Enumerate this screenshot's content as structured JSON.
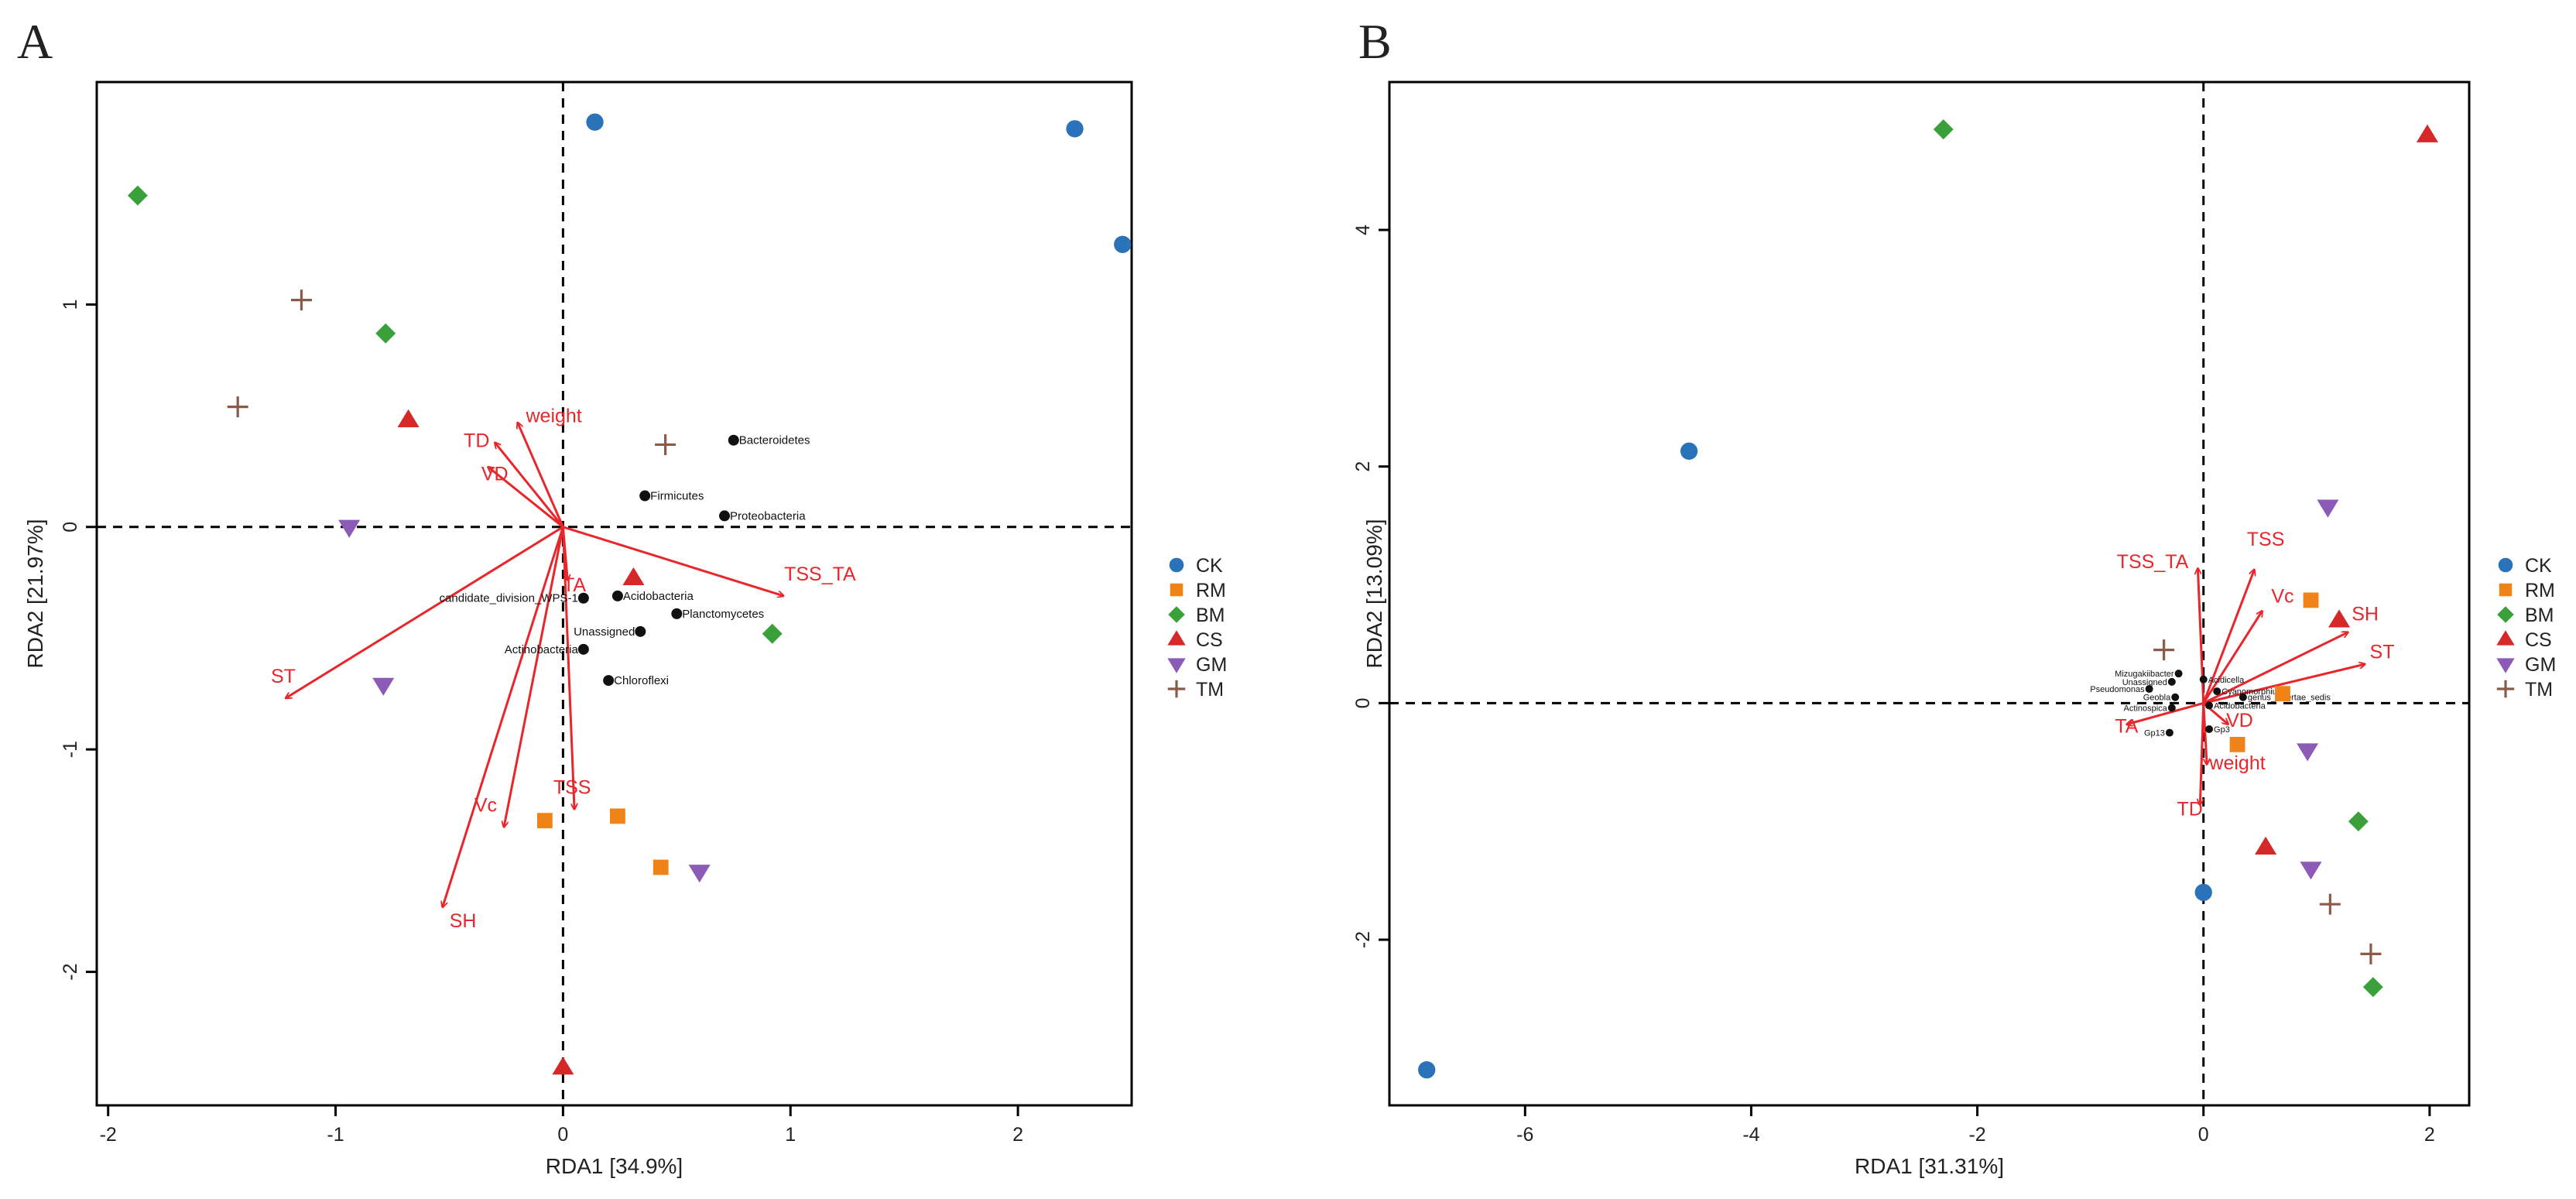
{
  "chart_data": [
    {
      "type": "scatter",
      "panel": "A",
      "title": "",
      "xlabel": "RDA1  [34.9%]",
      "ylabel": "RDA2  [21.97%]",
      "xlim": [
        -2.05,
        2.5
      ],
      "ylim": [
        -2.6,
        2.0
      ],
      "xticks": [
        -2,
        -1,
        0,
        1,
        2
      ],
      "yticks": [
        -2,
        -1,
        0,
        1
      ],
      "grid": false,
      "legend_position": "right",
      "series": [
        {
          "name": "CK",
          "color": "#2a73b8",
          "marker": "circle",
          "points": [
            [
              0.14,
              1.82
            ],
            [
              2.25,
              1.79
            ],
            [
              2.46,
              1.27
            ]
          ]
        },
        {
          "name": "RM",
          "color": "#f08318",
          "marker": "square",
          "points": [
            [
              -0.08,
              -1.32
            ],
            [
              0.24,
              -1.3
            ],
            [
              0.43,
              -1.53
            ]
          ]
        },
        {
          "name": "BM",
          "color": "#3aa03a",
          "marker": "diamond",
          "points": [
            [
              -1.87,
              1.49
            ],
            [
              -0.78,
              0.87
            ],
            [
              0.92,
              -0.48
            ]
          ]
        },
        {
          "name": "CS",
          "color": "#d62828",
          "marker": "triangle-up",
          "points": [
            [
              -0.68,
              0.48
            ],
            [
              0.31,
              -0.23
            ],
            [
              0.0,
              -2.43
            ]
          ]
        },
        {
          "name": "GM",
          "color": "#8c5bb8",
          "marker": "triangle-down",
          "points": [
            [
              -0.94,
              0.0
            ],
            [
              -0.79,
              -0.71
            ],
            [
              0.6,
              -1.55
            ]
          ]
        },
        {
          "name": "TM",
          "color": "#8c5a48",
          "marker": "plus",
          "points": [
            [
              -1.15,
              1.02
            ],
            [
              -1.43,
              0.54
            ],
            [
              0.45,
              0.37
            ]
          ]
        }
      ],
      "vectors": [
        {
          "label": "weight",
          "x": -0.2,
          "y": 0.47,
          "lx": -0.04,
          "ly": 0.47
        },
        {
          "label": "TD",
          "x": -0.3,
          "y": 0.38,
          "lx": -0.38,
          "ly": 0.36
        },
        {
          "label": "VD",
          "x": -0.33,
          "y": 0.27,
          "lx": -0.3,
          "ly": 0.21
        },
        {
          "label": "TSS_TA",
          "x": 0.97,
          "y": -0.31,
          "lx": 1.13,
          "ly": -0.24
        },
        {
          "label": "TA",
          "x": 0.02,
          "y": -0.24,
          "lx": 0.05,
          "ly": -0.29
        },
        {
          "label": "ST",
          "x": -1.22,
          "y": -0.77,
          "lx": -1.23,
          "ly": -0.7
        },
        {
          "label": "Vc",
          "x": -0.26,
          "y": -1.35,
          "lx": -0.34,
          "ly": -1.28
        },
        {
          "label": "TSS",
          "x": 0.05,
          "y": -1.27,
          "lx": 0.04,
          "ly": -1.2
        },
        {
          "label": "SH",
          "x": -0.53,
          "y": -1.71,
          "lx": -0.44,
          "ly": -1.8
        }
      ],
      "taxa": [
        {
          "label": "Bacteroidetes",
          "x": 0.75,
          "y": 0.39
        },
        {
          "label": "Firmicutes",
          "x": 0.36,
          "y": 0.14
        },
        {
          "label": "Proteobacteria",
          "x": 0.71,
          "y": 0.05
        },
        {
          "label": "Acidobacteria",
          "x": 0.24,
          "y": -0.31
        },
        {
          "label": "candidate_division_WPS-1",
          "x": 0.09,
          "y": -0.32
        },
        {
          "label": "Planctomycetes",
          "x": 0.5,
          "y": -0.39
        },
        {
          "label": "Unassigned",
          "x": 0.34,
          "y": -0.47
        },
        {
          "label": "Actinobacteria",
          "x": 0.09,
          "y": -0.55
        },
        {
          "label": "Chloroflexi",
          "x": 0.2,
          "y": -0.69
        }
      ]
    },
    {
      "type": "scatter",
      "panel": "B",
      "title": "",
      "xlabel": "RDA1  [31.31%]",
      "ylabel": "RDA2  [13.09%]",
      "xlim": [
        -7.2,
        2.35
      ],
      "ylim": [
        -3.4,
        5.25
      ],
      "xticks": [
        -6,
        -4,
        -2,
        0,
        2
      ],
      "yticks": [
        -2,
        0,
        2,
        4
      ],
      "grid": false,
      "legend_position": "right",
      "series": [
        {
          "name": "CK",
          "color": "#2a73b8",
          "marker": "circle",
          "points": [
            [
              -4.55,
              2.13
            ],
            [
              -6.87,
              -3.1
            ],
            [
              0.0,
              -1.6
            ]
          ]
        },
        {
          "name": "RM",
          "color": "#f08318",
          "marker": "square",
          "points": [
            [
              0.95,
              0.87
            ],
            [
              0.3,
              -0.35
            ],
            [
              0.7,
              0.08
            ]
          ]
        },
        {
          "name": "BM",
          "color": "#3aa03a",
          "marker": "diamond",
          "points": [
            [
              -2.3,
              4.85
            ],
            [
              1.37,
              -1.0
            ],
            [
              1.5,
              -2.4
            ]
          ]
        },
        {
          "name": "CS",
          "color": "#d62828",
          "marker": "triangle-up",
          "points": [
            [
              1.98,
              4.8
            ],
            [
              1.2,
              0.7
            ],
            [
              0.55,
              -1.22
            ]
          ]
        },
        {
          "name": "GM",
          "color": "#8c5bb8",
          "marker": "triangle-down",
          "points": [
            [
              1.1,
              1.66
            ],
            [
              0.92,
              -0.4
            ],
            [
              0.95,
              -1.4
            ]
          ]
        },
        {
          "name": "TM",
          "color": "#8c5a48",
          "marker": "plus",
          "points": [
            [
              -0.35,
              0.45
            ],
            [
              1.12,
              -1.7
            ],
            [
              1.48,
              -2.12
            ]
          ]
        }
      ],
      "vectors": [
        {
          "label": "TSS",
          "x": 0.45,
          "y": 1.13,
          "lx": 0.55,
          "ly": 1.33
        },
        {
          "label": "TSS_TA",
          "x": -0.05,
          "y": 1.14,
          "lx": -0.45,
          "ly": 1.14
        },
        {
          "label": "Vc",
          "x": 0.52,
          "y": 0.78,
          "lx": 0.7,
          "ly": 0.85
        },
        {
          "label": "SH",
          "x": 1.28,
          "y": 0.6,
          "lx": 1.43,
          "ly": 0.7
        },
        {
          "label": "ST",
          "x": 1.43,
          "y": 0.33,
          "lx": 1.58,
          "ly": 0.38
        },
        {
          "label": "VD",
          "x": 0.22,
          "y": -0.18,
          "lx": 0.32,
          "ly": -0.2
        },
        {
          "label": "TA",
          "x": -0.68,
          "y": -0.18,
          "lx": -0.68,
          "ly": -0.25
        },
        {
          "label": "weight",
          "x": 0.03,
          "y": -0.52,
          "lx": 0.3,
          "ly": -0.56
        },
        {
          "label": "TD",
          "x": -0.03,
          "y": -0.86,
          "lx": -0.12,
          "ly": -0.95
        }
      ],
      "taxa": [
        {
          "label": "Mizugakiibacter",
          "x": -0.22,
          "y": 0.25
        },
        {
          "label": "Acidicella",
          "x": 0.0,
          "y": 0.2
        },
        {
          "label": "Unassigned",
          "x": -0.28,
          "y": 0.18
        },
        {
          "label": "Cyanomorphium",
          "x": 0.12,
          "y": 0.1
        },
        {
          "label": "Pseudomonas",
          "x": -0.48,
          "y": 0.12
        },
        {
          "label": "Geobla",
          "x": -0.25,
          "y": 0.05
        },
        {
          "label": "Actinospica",
          "x": -0.28,
          "y": -0.04
        },
        {
          "label": "genus_incertae_sedis",
          "x": 0.35,
          "y": 0.05
        },
        {
          "label": "Gp13",
          "x": -0.3,
          "y": -0.25
        },
        {
          "label": "Gp3",
          "x": 0.05,
          "y": -0.22
        },
        {
          "label": "Acidobacteria",
          "x": 0.05,
          "y": -0.02
        }
      ]
    }
  ]
}
